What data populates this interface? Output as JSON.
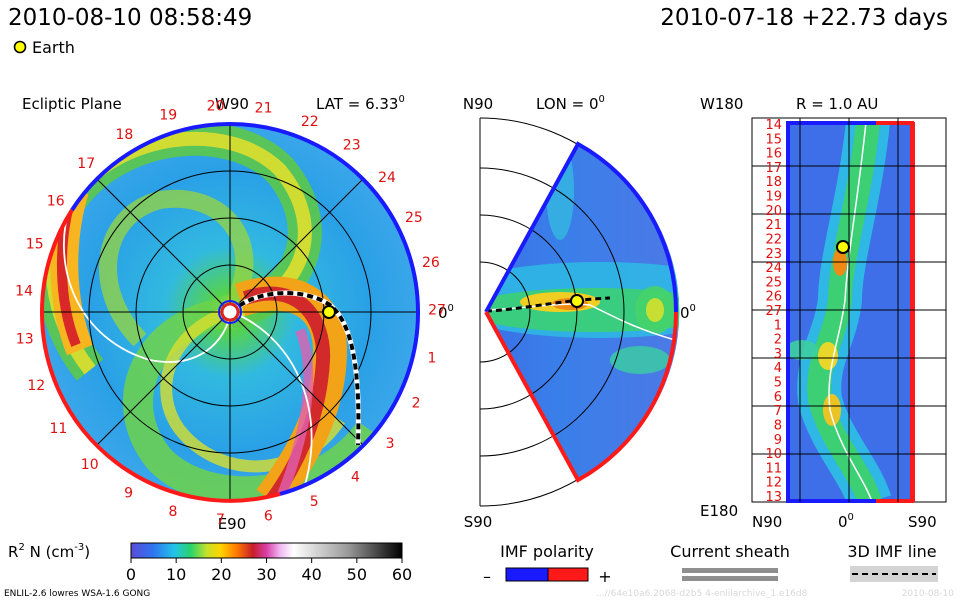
{
  "header": {
    "timestamp": "2010-08-10 08:58:49",
    "reference": "2010-07-18 +22.73 days",
    "earth_label": "Earth"
  },
  "chart_data": [
    {
      "type": "heatmap",
      "panel": "ecliptic",
      "title": "Ecliptic Plane",
      "lat_label": "LAT = 6.33",
      "lat_sup": "0",
      "top_label": "W90",
      "bottom_label": "E90",
      "right_label": "0",
      "right_sup": "0",
      "rotation_labels": [
        "14",
        "15",
        "16",
        "17",
        "18",
        "19",
        "20",
        "21",
        "22",
        "23",
        "24",
        "25",
        "26",
        "27",
        "1",
        "2",
        "3",
        "4",
        "5",
        "6",
        "7",
        "8",
        "9",
        "10",
        "11",
        "12",
        "13"
      ],
      "earth_angle_deg": 0,
      "earth_radius_au": 1.0
    },
    {
      "type": "heatmap",
      "panel": "meridional",
      "lon_label": "LON = 0",
      "lon_sup": "0",
      "top_label": "N90",
      "bottom_label": "S90",
      "right_label": "0",
      "right_sup": "0",
      "lat_extent_deg": [
        -60,
        60
      ]
    },
    {
      "type": "heatmap",
      "panel": "radial",
      "r_label": "R = 1.0 AU",
      "top_label": "W180",
      "bottom_label": "E180",
      "x_labels": [
        "N90",
        "0",
        "S90"
      ],
      "x_sup": "0",
      "y_labels": [
        "14",
        "15",
        "16",
        "17",
        "18",
        "19",
        "20",
        "21",
        "22",
        "23",
        "24",
        "25",
        "26",
        "27",
        "1",
        "2",
        "3",
        "4",
        "5",
        "6",
        "7",
        "8",
        "9",
        "10",
        "11",
        "12",
        "13"
      ]
    }
  ],
  "colorbar": {
    "label": "R",
    "label_sup": "2",
    "label_rest": " N (cm",
    "unit_sup": "-3",
    "unit_close": ")",
    "ticks": [
      "0",
      "10",
      "20",
      "30",
      "40",
      "50",
      "60"
    ],
    "range": [
      0,
      60
    ]
  },
  "legend": {
    "imf_title": "IMF polarity",
    "imf_minus": "–",
    "imf_plus": "+",
    "sheath_title": "Current sheath",
    "imf3d_title": "3D IMF line"
  },
  "footer": {
    "model": "ENLIL-2.6 lowres WSA-1.6 GONG",
    "faint_left": "...//64e10a6.2068-d2b5 4-enlilarchive_1.e16d8",
    "faint_right": "2010-08-10"
  },
  "colors": {
    "positive": "#ff1a1a",
    "negative": "#1a1aff",
    "label_red": "#e01010"
  }
}
